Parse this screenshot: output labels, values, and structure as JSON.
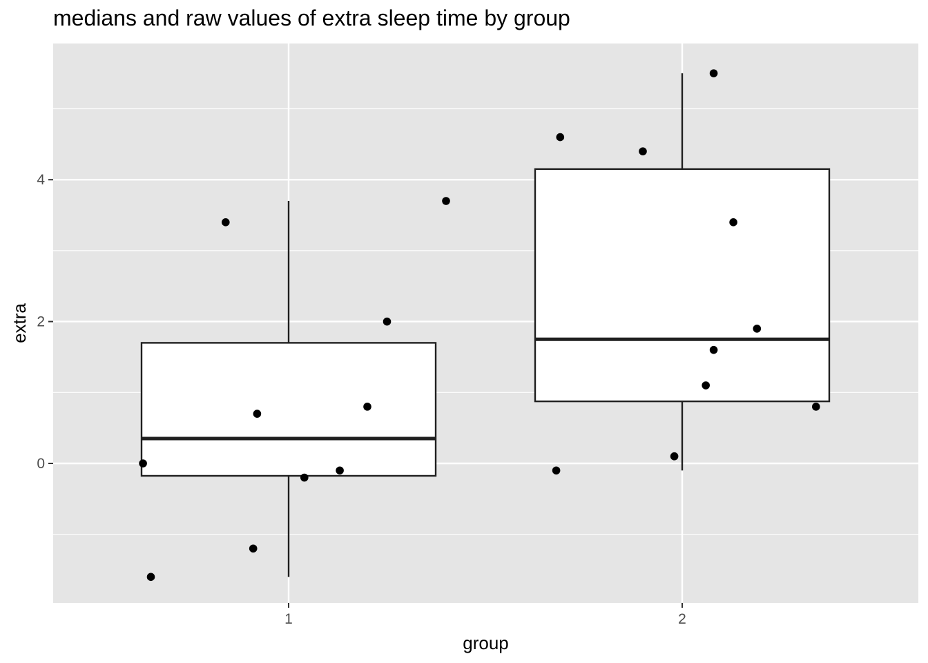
{
  "chart_data": {
    "type": "boxplot",
    "title": "medians and raw values of extra sleep time by group",
    "xlabel": "group",
    "ylabel": "extra",
    "categories": [
      "1",
      "2"
    ],
    "ylim": [
      -1.95,
      5.9
    ],
    "y_ticks": [
      0,
      2,
      4
    ],
    "grid": true,
    "legend": "none",
    "boxes": [
      {
        "category": "1",
        "lower_whisker": -1.6,
        "q1": -0.175,
        "median": 0.35,
        "q3": 1.7,
        "upper_whisker": 3.7
      },
      {
        "category": "2",
        "lower_whisker": -0.1,
        "q1": 0.875,
        "median": 1.75,
        "q3": 4.15,
        "upper_whisker": 5.5
      }
    ],
    "points": [
      {
        "group": "1",
        "jitter": -0.37,
        "y": 0.0
      },
      {
        "group": "1",
        "jitter": -0.35,
        "y": -1.6
      },
      {
        "group": "1",
        "jitter": -0.16,
        "y": 3.4
      },
      {
        "group": "1",
        "jitter": -0.09,
        "y": -1.2
      },
      {
        "group": "1",
        "jitter": -0.08,
        "y": 0.7
      },
      {
        "group": "1",
        "jitter": 0.04,
        "y": -0.2
      },
      {
        "group": "1",
        "jitter": 0.13,
        "y": -0.1
      },
      {
        "group": "1",
        "jitter": 0.2,
        "y": 0.8
      },
      {
        "group": "1",
        "jitter": 0.25,
        "y": 2.0
      },
      {
        "group": "1",
        "jitter": 0.4,
        "y": 3.7
      },
      {
        "group": "2",
        "jitter": -0.31,
        "y": 4.6
      },
      {
        "group": "2",
        "jitter": -0.32,
        "y": -0.1
      },
      {
        "group": "2",
        "jitter": -0.1,
        "y": 4.4
      },
      {
        "group": "2",
        "jitter": -0.02,
        "y": 0.1
      },
      {
        "group": "2",
        "jitter": 0.06,
        "y": 1.1
      },
      {
        "group": "2",
        "jitter": 0.08,
        "y": 5.5
      },
      {
        "group": "2",
        "jitter": 0.08,
        "y": 1.6
      },
      {
        "group": "2",
        "jitter": 0.13,
        "y": 3.4
      },
      {
        "group": "2",
        "jitter": 0.19,
        "y": 1.9
      },
      {
        "group": "2",
        "jitter": 0.34,
        "y": 0.8
      }
    ],
    "colors": {
      "panel_background": "#e5e5e5",
      "grid_line": "#ffffff",
      "box_fill": "#ffffff",
      "box_stroke": "#1f1f1f",
      "point": "#000000",
      "tick_label": "#4d4d4d",
      "axis_title": "#000000"
    }
  }
}
